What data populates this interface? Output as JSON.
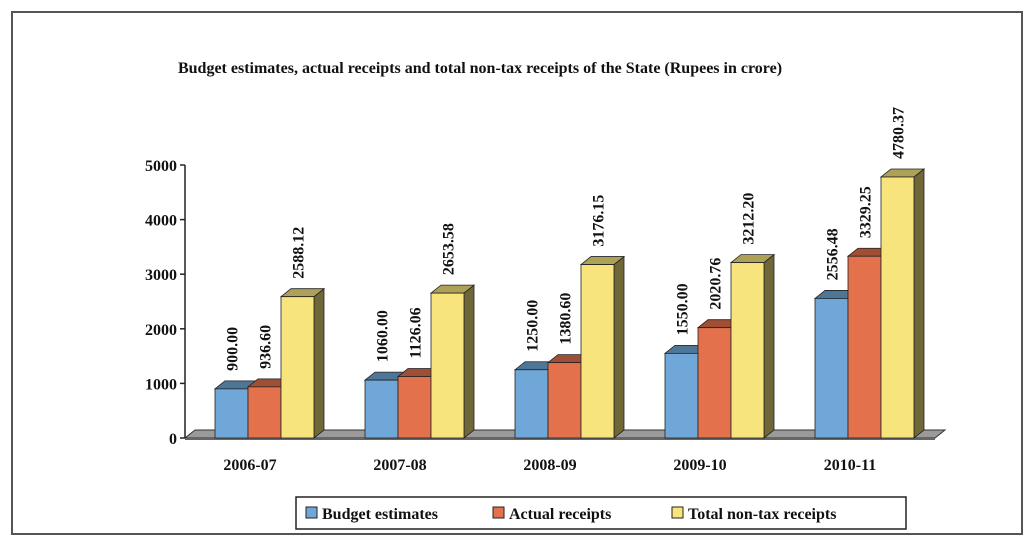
{
  "chart_data": {
    "type": "bar3d",
    "title": "Budget estimates, actual receipts and total non-tax receipts of the State (Rupees in crore)",
    "categories": [
      "2006-07",
      "2007-08",
      "2008-09",
      "2009-10",
      "2010-11"
    ],
    "series": [
      {
        "name": "Budget estimates",
        "color": "#6fa8d8",
        "values": [
          900,
          1060,
          1250,
          1550,
          2556.48
        ],
        "value_labels": [
          "900.00",
          "1060.00",
          "1250.00",
          "1550.00",
          "2556.48"
        ]
      },
      {
        "name": "Actual receipts",
        "color": "#e3714c",
        "values": [
          936.6,
          1126.06,
          1380.6,
          2020.76,
          3329.25
        ],
        "value_labels": [
          "936.60",
          "1126.06",
          "1380.60",
          "2020.76",
          "3329.25"
        ]
      },
      {
        "name": "Total non-tax receipts",
        "color": "#f7e47c",
        "values": [
          2588.12,
          2653.58,
          3176.15,
          3212.2,
          4780.37
        ],
        "value_labels": [
          "2588.12",
          "2653.58",
          "3176.15",
          "3212.20",
          "4780.37"
        ]
      }
    ],
    "ylim": [
      0,
      5000
    ],
    "yticks": [
      0,
      1000,
      2000,
      3000,
      4000,
      5000
    ],
    "legend": "bottom"
  }
}
